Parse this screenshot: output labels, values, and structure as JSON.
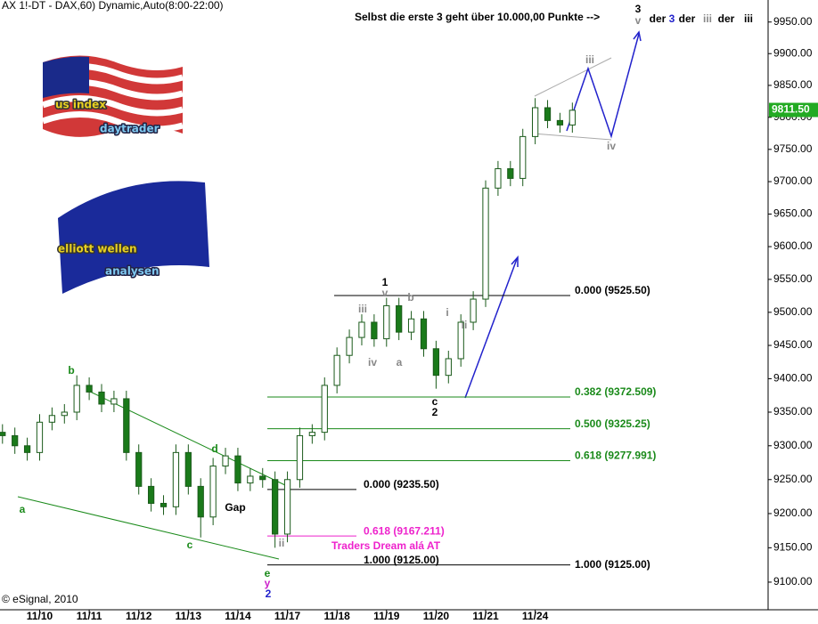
{
  "chart_data": {
    "type": "candlestick",
    "title": "AX 1!-DT - DAX,60) Dynamic,Auto(8:00-22:00)",
    "subtitle": "Selbst die erste 3 geht über 10.000,00 Punkte -->",
    "credit": "© eSignal, 2010",
    "log_scale": true,
    "up_color": "#ffffff",
    "down_color": "#1a7a1a",
    "wick_color": "#1a5a1a",
    "xlim": [
      -0.8,
      14.7
    ],
    "xticks": [
      {
        "value": 0,
        "label": "11/10"
      },
      {
        "value": 1,
        "label": "11/11"
      },
      {
        "value": 2,
        "label": "11/12"
      },
      {
        "value": 3,
        "label": "11/13"
      },
      {
        "value": 4,
        "label": "11/14"
      },
      {
        "value": 5,
        "label": "11/17"
      },
      {
        "value": 6,
        "label": "11/18"
      },
      {
        "value": 7,
        "label": "11/19"
      },
      {
        "value": 8,
        "label": "11/20"
      },
      {
        "value": 9,
        "label": "11/21"
      },
      {
        "value": 10,
        "label": "11/24"
      }
    ],
    "ylim": [
      9060,
      9985
    ],
    "yticks": [
      {
        "value": 9100,
        "label": "9100.00"
      },
      {
        "value": 9150,
        "label": "9150.00"
      },
      {
        "value": 9200,
        "label": "9200.00"
      },
      {
        "value": 9250,
        "label": "9250.00"
      },
      {
        "value": 9300,
        "label": "9300.00"
      },
      {
        "value": 9350,
        "label": "9350.00"
      },
      {
        "value": 9400,
        "label": "9400.00"
      },
      {
        "value": 9450,
        "label": "9450.00"
      },
      {
        "value": 9500,
        "label": "9500.00"
      },
      {
        "value": 9550,
        "label": "9550.00"
      },
      {
        "value": 9600,
        "label": "9600.00"
      },
      {
        "value": 9650,
        "label": "9650.00"
      },
      {
        "value": 9700,
        "label": "9700.00"
      },
      {
        "value": 9750,
        "label": "9750.00"
      },
      {
        "value": 9800,
        "label": "9800.00"
      },
      {
        "value": 9850,
        "label": "9850.00"
      },
      {
        "value": 9900,
        "label": "9900.00"
      },
      {
        "value": 9950,
        "label": "9950.00"
      }
    ],
    "last_price": {
      "value": 9811.5,
      "label": "9811.50",
      "color": "#22aa22"
    },
    "x": [
      -0.75,
      -0.5,
      -0.25,
      0,
      0.25,
      0.5,
      0.75,
      1,
      1.25,
      1.5,
      1.75,
      2,
      2.25,
      2.5,
      2.75,
      3,
      3.25,
      3.5,
      3.75,
      4,
      4.25,
      4.5,
      4.75,
      5,
      5.25,
      5.5,
      5.75,
      6,
      6.25,
      6.5,
      6.75,
      7,
      7.25,
      7.5,
      7.75,
      8,
      8.25,
      8.5,
      8.75,
      9,
      9.25,
      9.5,
      9.75,
      10,
      10.25,
      10.5,
      10.75
    ],
    "open": [
      9320,
      9315,
      9300,
      9290,
      9335,
      9345,
      9350,
      9390,
      9380,
      9362,
      9370,
      9290,
      9240,
      9215,
      9210,
      9290,
      9240,
      9195,
      9270,
      9285,
      9245,
      9255,
      9250,
      9170,
      9250,
      9315,
      9320,
      9390,
      9435,
      9462,
      9485,
      9460,
      9510,
      9470,
      9490,
      9445,
      9405,
      9430,
      9485,
      9520,
      9690,
      9720,
      9705,
      9770,
      9815,
      9795,
      9788
    ],
    "high": [
      9332,
      9327,
      9312,
      9347,
      9357,
      9362,
      9405,
      9402,
      9392,
      9382,
      9382,
      9302,
      9252,
      9227,
      9302,
      9302,
      9252,
      9282,
      9297,
      9297,
      9267,
      9267,
      9262,
      9262,
      9327,
      9332,
      9402,
      9447,
      9474,
      9497,
      9497,
      9522,
      9522,
      9502,
      9502,
      9457,
      9442,
      9497,
      9532,
      9702,
      9732,
      9732,
      9782,
      9830,
      9827,
      9807,
      9823
    ],
    "low": [
      9303,
      9288,
      9278,
      9278,
      9323,
      9333,
      9338,
      9368,
      9350,
      9350,
      9278,
      9228,
      9203,
      9198,
      9198,
      9228,
      9165,
      9183,
      9258,
      9233,
      9233,
      9238,
      9150,
      9158,
      9238,
      9303,
      9308,
      9378,
      9423,
      9450,
      9448,
      9448,
      9458,
      9458,
      9433,
      9385,
      9393,
      9418,
      9473,
      9508,
      9678,
      9693,
      9693,
      9758,
      9783,
      9776,
      9776
    ],
    "close": [
      9315,
      9300,
      9290,
      9335,
      9345,
      9350,
      9390,
      9380,
      9362,
      9370,
      9290,
      9240,
      9215,
      9210,
      9290,
      9240,
      9195,
      9270,
      9285,
      9245,
      9255,
      9250,
      9170,
      9250,
      9315,
      9320,
      9390,
      9435,
      9462,
      9485,
      9460,
      9510,
      9470,
      9490,
      9445,
      9405,
      9430,
      9485,
      9520,
      9690,
      9720,
      9705,
      9770,
      9815,
      9795,
      9788,
      9811
    ],
    "levels": [
      {
        "value": 9525.5,
        "label": "0.000 (9525.50)",
        "color": "#000000"
      },
      {
        "value": 9372.509,
        "label": "0.382 (9372.509)",
        "color": "#1a8a1a"
      },
      {
        "value": 9325.25,
        "label": "0.500 (9325.25)",
        "color": "#1a8a1a"
      },
      {
        "value": 9277.991,
        "label": "0.618 (9277.991)",
        "color": "#1a8a1a"
      },
      {
        "value": 9235.5,
        "label": "0.000 (9235.50)",
        "color": "#000000"
      },
      {
        "value": 9167.211,
        "label": "0.618 (9167.211)",
        "color": "#ee22cc"
      },
      {
        "value": 9125,
        "label": "1.000 (9125.00)",
        "color": "#000000"
      }
    ],
    "annotations": [
      "a",
      "b",
      "c",
      "d",
      "e",
      "y",
      "2",
      "ii",
      "Gap",
      "iii",
      "iv",
      "1",
      "v",
      "a",
      "b",
      "c",
      "2",
      "i",
      "ii",
      "iii",
      "iv",
      "3",
      "v",
      "Traders Dream alá AT",
      "der",
      "3",
      "der",
      "iii",
      "der",
      "iii"
    ]
  },
  "logos": [
    [
      "us index",
      "daytrader"
    ],
    [
      "elliott wellen",
      "analysen"
    ]
  ]
}
